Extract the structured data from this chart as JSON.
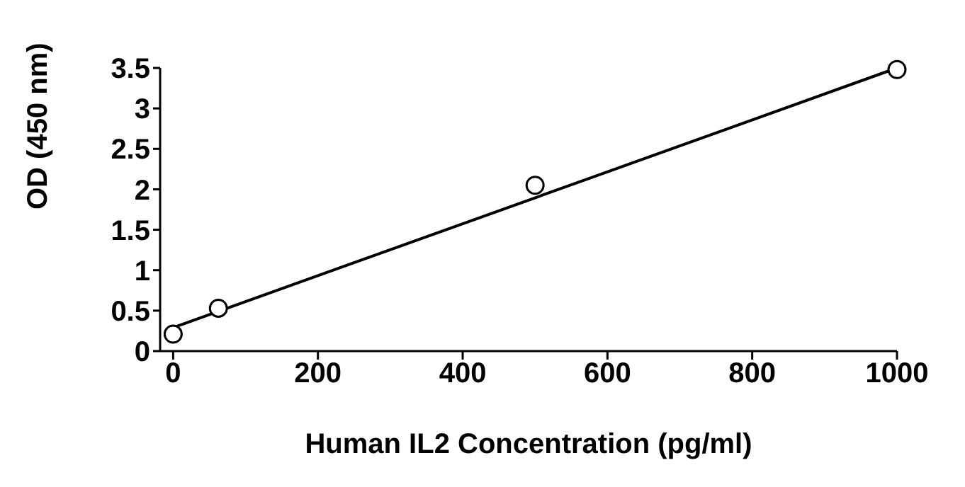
{
  "chart_data": {
    "type": "scatter",
    "xlabel": "Human IL2 Concentration (pg/ml)",
    "ylabel": "OD (450 nm)",
    "xlim": [
      -18,
      1000
    ],
    "xticks": [
      0,
      200,
      400,
      600,
      800,
      1000
    ],
    "ylim": [
      0,
      3.5
    ],
    "yticks": [
      0,
      0.5,
      1,
      1.5,
      2,
      2.5,
      3,
      3.5
    ],
    "grid": false,
    "legend": false,
    "series": [
      {
        "x": [
          0,
          62.5,
          500,
          1000
        ],
        "values": [
          0.21,
          0.53,
          2.05,
          3.48
        ],
        "color": "#000000",
        "marker": "circle"
      },
      {
        "type": "line",
        "x": [
          0,
          1000
        ],
        "values": [
          0.29,
          3.5
        ],
        "color": "#000000",
        "marker": "none",
        "line_style": "solid"
      }
    ]
  }
}
